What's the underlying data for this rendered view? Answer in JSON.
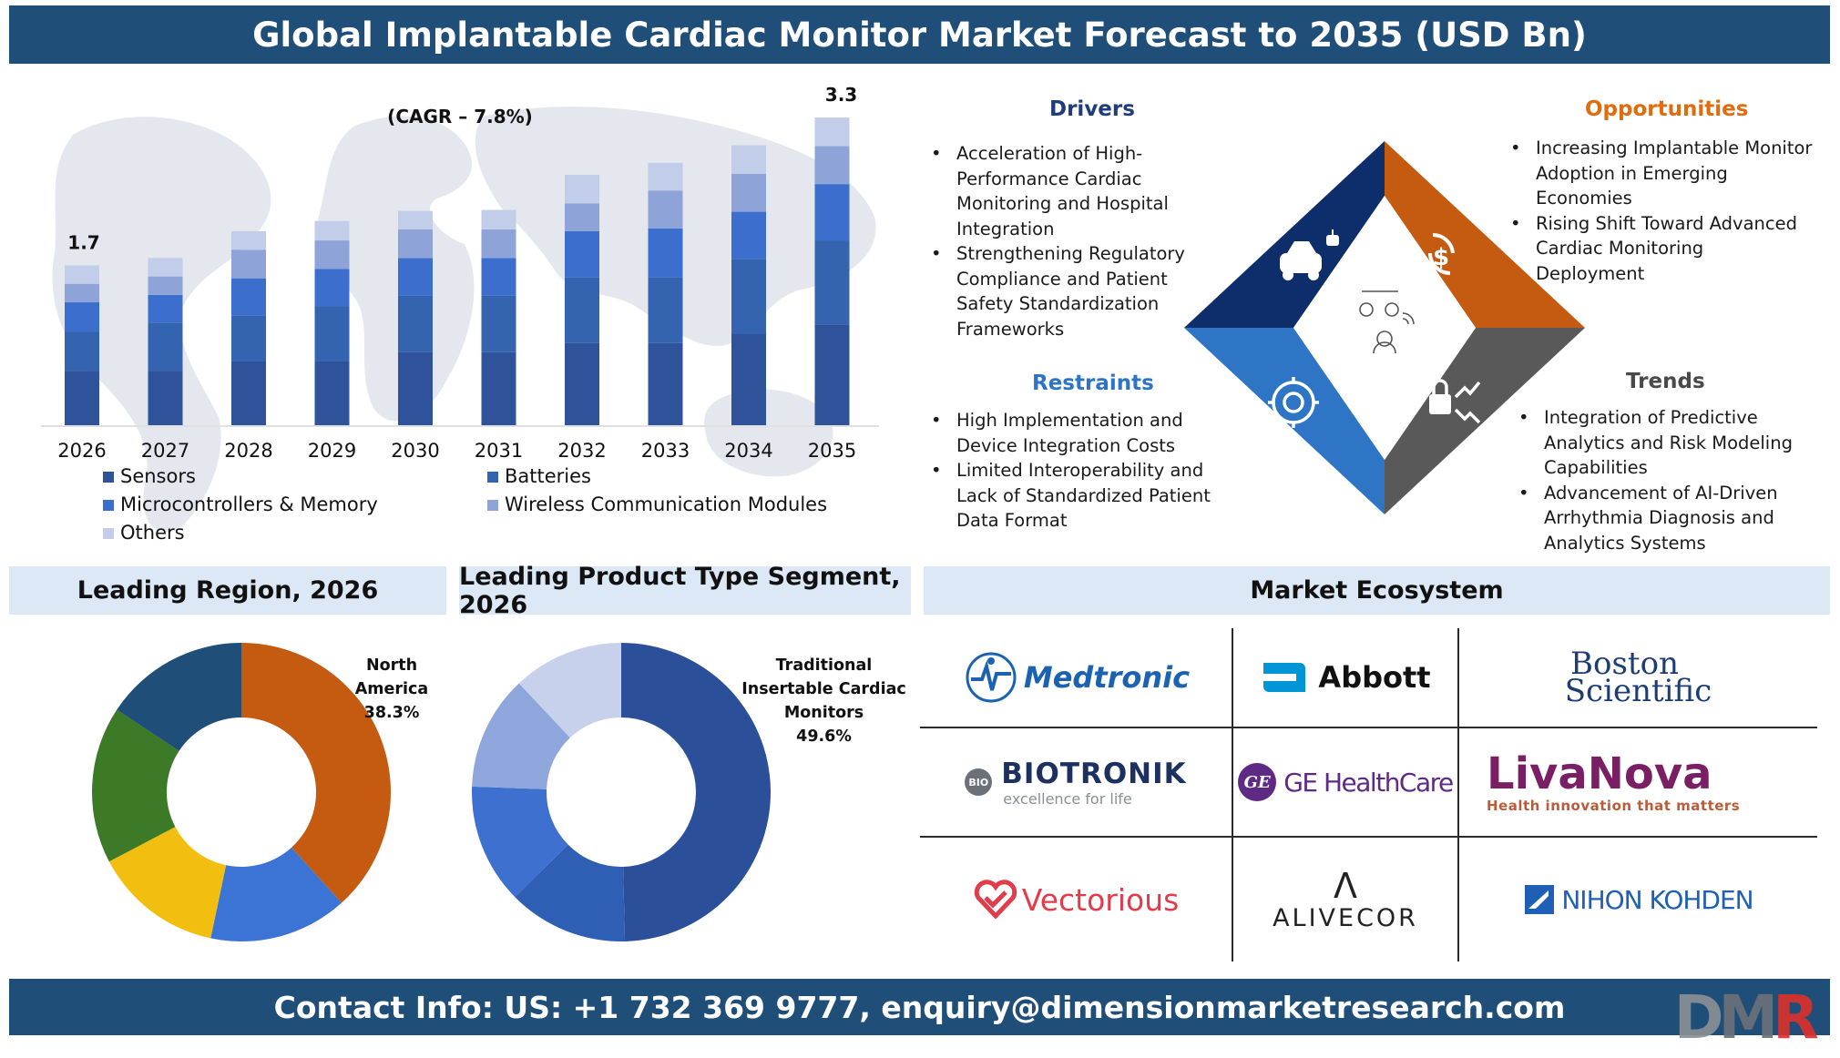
{
  "header": {
    "title": "Global Implantable Cardiac Monitor Market Forecast to 2035 (USD Bn)"
  },
  "footer": {
    "contact": "Contact Info: US: +1 732 369 9777, enquiry@dimensionmarketresearch.com",
    "logo": [
      "D",
      "M",
      "R"
    ]
  },
  "chart_data": [
    {
      "type": "bar",
      "stacked": true,
      "cagr_label": "(CAGR – 7.8%)",
      "categories": [
        "2026",
        "2027",
        "2028",
        "2029",
        "2030",
        "2031",
        "2032",
        "2033",
        "2034",
        "2035"
      ],
      "totals": [
        1.7,
        1.8,
        2.1,
        2.2,
        2.3,
        2.3,
        2.7,
        2.8,
        3.0,
        3.3
      ],
      "total_labels": {
        "2026": "1.7",
        "2035": "3.3"
      },
      "ylim": [
        0,
        3.4
      ],
      "series": [
        {
          "name": "Sensors",
          "color": "#2f539b",
          "values": [
            0.6,
            0.6,
            0.7,
            0.7,
            0.8,
            0.8,
            0.9,
            0.9,
            1.0,
            1.1
          ]
        },
        {
          "name": "Batteries",
          "color": "#3463b0",
          "values": [
            0.42,
            0.52,
            0.5,
            0.6,
            0.61,
            0.61,
            0.71,
            0.71,
            0.81,
            0.91
          ]
        },
        {
          "name": "Microcontrollers & Memory",
          "color": "#3c6fcd",
          "values": [
            0.32,
            0.3,
            0.4,
            0.4,
            0.41,
            0.41,
            0.5,
            0.53,
            0.51,
            0.61
          ]
        },
        {
          "name": "Wireless Communication Modules",
          "color": "#8ea4d8",
          "values": [
            0.2,
            0.2,
            0.31,
            0.31,
            0.31,
            0.31,
            0.3,
            0.41,
            0.41,
            0.41
          ]
        },
        {
          "name": "Others",
          "color": "#c2cdea",
          "values": [
            0.2,
            0.2,
            0.2,
            0.21,
            0.2,
            0.21,
            0.31,
            0.3,
            0.31,
            0.31
          ]
        }
      ],
      "legend_order": [
        [
          "Sensors",
          "Batteries"
        ],
        [
          "Microcontrollers & Memory",
          "Wireless Communication Modules"
        ],
        [
          "Others"
        ]
      ]
    },
    {
      "type": "pie",
      "title": "Leading Region, 2026",
      "label": [
        "North",
        "America",
        "38.3%"
      ],
      "slices": [
        {
          "value": 38.3,
          "color": "#c55a11"
        },
        {
          "value": 15.0,
          "color": "#3b74d5"
        },
        {
          "value": 14.0,
          "color": "#f2bf10"
        },
        {
          "value": 17.0,
          "color": "#3d7a28"
        },
        {
          "value": 15.7,
          "color": "#1f4e79"
        }
      ]
    },
    {
      "type": "pie",
      "title": "Leading Product Type Segment, 2026",
      "label": [
        "Traditional",
        "Insertable Cardiac",
        "Monitors",
        "49.6%"
      ],
      "slices": [
        {
          "value": 49.6,
          "color": "#2c4f9a"
        },
        {
          "value": 13.0,
          "color": "#2f5fb5"
        },
        {
          "value": 13.0,
          "color": "#3d70cf"
        },
        {
          "value": 12.4,
          "color": "#8ea6dc"
        },
        {
          "value": 12.0,
          "color": "#c7d1ec"
        }
      ]
    }
  ],
  "drot": {
    "drivers": {
      "title": "Drivers",
      "color": "#1f3d7a",
      "items": [
        "Acceleration of High-Performance Cardiac Monitoring and Hospital Integration",
        "Strengthening Regulatory Compliance and Patient Safety Standardization Frameworks"
      ],
      "lines": [
        [
          "Acceleration of High-",
          "Performance Cardiac",
          "Monitoring and Hospital",
          "Integration"
        ],
        [
          "Strengthening Regulatory",
          "Compliance and Patient",
          "Safety Standardization",
          "Frameworks"
        ]
      ]
    },
    "opportunities": {
      "title": "Opportunities",
      "color": "#e06c0d",
      "lines": [
        [
          "Increasing Implantable Monitor",
          "Adoption in Emerging",
          "Economies"
        ],
        [
          "Rising Shift Toward Advanced",
          "Cardiac Monitoring",
          "Deployment"
        ]
      ]
    },
    "restraints": {
      "title": "Restraints",
      "color": "#2e74c4",
      "lines": [
        [
          "High Implementation and",
          "Device Integration Costs"
        ],
        [
          "Limited Interoperability and",
          "Lack of Standardized Patient",
          "Data Format"
        ]
      ]
    },
    "trends": {
      "title": "Trends",
      "color": "#4a4a4a",
      "lines": [
        [
          "Integration of Predictive",
          "Analytics and Risk Modeling",
          "Capabilities"
        ],
        [
          "Advancement of AI-Driven",
          "Arrhythmia Diagnosis and",
          "Analytics Systems"
        ]
      ]
    },
    "diamond_colors": {
      "top_left": "#0e2d6b",
      "top_right": "#c55a11",
      "bottom_left": "#2e75c6",
      "bottom_right": "#595959"
    },
    "icons": [
      "car-robot-icon",
      "dollar-cycle-icon",
      "gear-network-icon",
      "lock-trend-icon",
      "operator-icon"
    ]
  },
  "ecosystem": {
    "title": "Market Ecosystem",
    "logos": [
      {
        "id": "medtronic",
        "name": "Medtronic",
        "color": "#1b63b1"
      },
      {
        "id": "abbott",
        "name": "Abbott",
        "color": "#111111",
        "mark_color": "#0096d6"
      },
      {
        "id": "boston",
        "name": [
          "Boston",
          "Scientific"
        ],
        "color": "#1d3d73"
      },
      {
        "id": "biotronik",
        "name": "BIOTRONIK",
        "tagline": "excellence for life",
        "mark": "BIO",
        "color": "#1d3160"
      },
      {
        "id": "ge",
        "name": "GE HealthCare",
        "mark": "GE",
        "color": "#5e2a84"
      },
      {
        "id": "livanova",
        "name": "LivaNova",
        "tagline": "Health innovation that matters",
        "color": "#7a1f63",
        "tag_color": "#b85c3a"
      },
      {
        "id": "vectorious",
        "name": "Vectorious",
        "color": "#e23b4a"
      },
      {
        "id": "alivecor",
        "name": "ALIVECOR",
        "mark": "Λ",
        "color": "#222222"
      },
      {
        "id": "nihon",
        "name": "NIHON KOHDEN",
        "color": "#1f5fb5"
      }
    ]
  }
}
